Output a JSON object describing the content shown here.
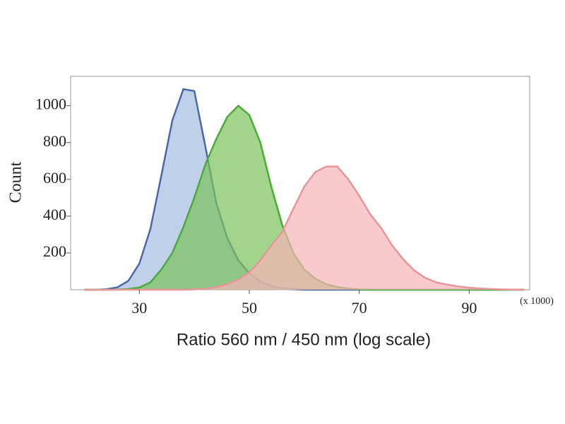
{
  "chart_data": {
    "type": "area",
    "x_label": "Ratio 560 nm / 450 nm (log scale)",
    "y_label": "Count",
    "x_unit_note": "(x 1000)",
    "x": [
      20,
      22,
      24,
      26,
      28,
      30,
      32,
      34,
      36,
      38,
      40,
      42,
      44,
      46,
      48,
      50,
      52,
      54,
      56,
      58,
      60,
      62,
      64,
      66,
      68,
      70,
      72,
      74,
      76,
      78,
      80,
      82,
      84,
      86,
      88,
      90,
      92,
      94,
      96,
      98,
      100
    ],
    "series": [
      {
        "color": "#4a68a8",
        "fill": "#a3bde0",
        "values": [
          0,
          0,
          3,
          13,
          48,
          142,
          330,
          620,
          920,
          1090,
          1080,
          780,
          470,
          280,
          160,
          90,
          45,
          20,
          8,
          3,
          0,
          0,
          0,
          0,
          0,
          0,
          0,
          0,
          0,
          0,
          0,
          0,
          0,
          0,
          0,
          0,
          0,
          0,
          0,
          0,
          0
        ]
      },
      {
        "color": "#4aaa3a",
        "fill": "#7cc25a",
        "values": [
          0,
          0,
          0,
          1,
          4,
          12,
          40,
          110,
          200,
          340,
          500,
          680,
          820,
          940,
          1000,
          950,
          800,
          560,
          350,
          200,
          110,
          60,
          30,
          15,
          6,
          2,
          0,
          0,
          0,
          0,
          0,
          0,
          0,
          0,
          0,
          0,
          0,
          0,
          0,
          0,
          0
        ]
      },
      {
        "color": "#e8959a",
        "fill": "#f7b4b8",
        "values": [
          0,
          0,
          0,
          0,
          0,
          0,
          0,
          0,
          0,
          0,
          2,
          5,
          15,
          30,
          55,
          95,
          160,
          240,
          315,
          440,
          560,
          640,
          670,
          670,
          600,
          510,
          410,
          335,
          240,
          165,
          105,
          65,
          40,
          28,
          18,
          11,
          7,
          4,
          2,
          1,
          0
        ]
      }
    ],
    "xlim": [
      17.5,
      101
    ],
    "ylim": [
      0,
      1160
    ],
    "xticks": [
      30,
      50,
      70,
      90
    ],
    "yticks": [
      200,
      400,
      600,
      800,
      1000
    ]
  }
}
